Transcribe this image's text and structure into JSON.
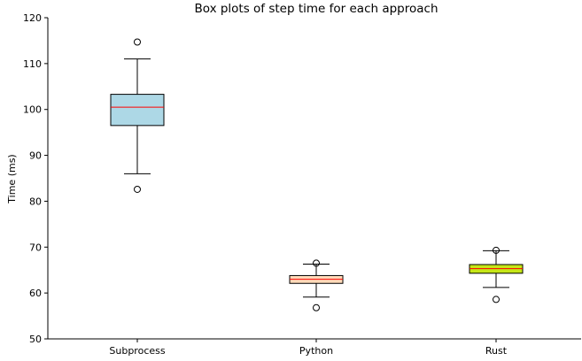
{
  "chart_data": {
    "type": "box",
    "title": "Box plots of step time for each approach",
    "xlabel": "",
    "ylabel": "Time (ms)",
    "ylim": [
      50,
      120
    ],
    "yticks": [
      50,
      60,
      70,
      80,
      90,
      100,
      110,
      120
    ],
    "grid": false,
    "categories": [
      "Subprocess",
      "Python",
      "Rust"
    ],
    "boxes": [
      {
        "category": "Subprocess",
        "whisker_low": 86.0,
        "q1": 96.5,
        "median": 100.5,
        "q3": 103.3,
        "whisker_high": 111.0,
        "outliers": [
          114.7,
          82.6
        ],
        "fill": "#add8e6"
      },
      {
        "category": "Python",
        "whisker_low": 59.1,
        "q1": 62.1,
        "median": 63.0,
        "q3": 63.8,
        "whisker_high": 66.3,
        "outliers": [
          66.5,
          56.8
        ],
        "fill": "#ffdab9"
      },
      {
        "category": "Rust",
        "whisker_low": 61.2,
        "q1": 64.3,
        "median": 65.3,
        "q3": 66.2,
        "whisker_high": 69.2,
        "outliers": [
          69.3,
          58.6
        ],
        "fill": "#c5e617"
      }
    ],
    "median_color": "#ff0000",
    "line_color": "#000000"
  }
}
